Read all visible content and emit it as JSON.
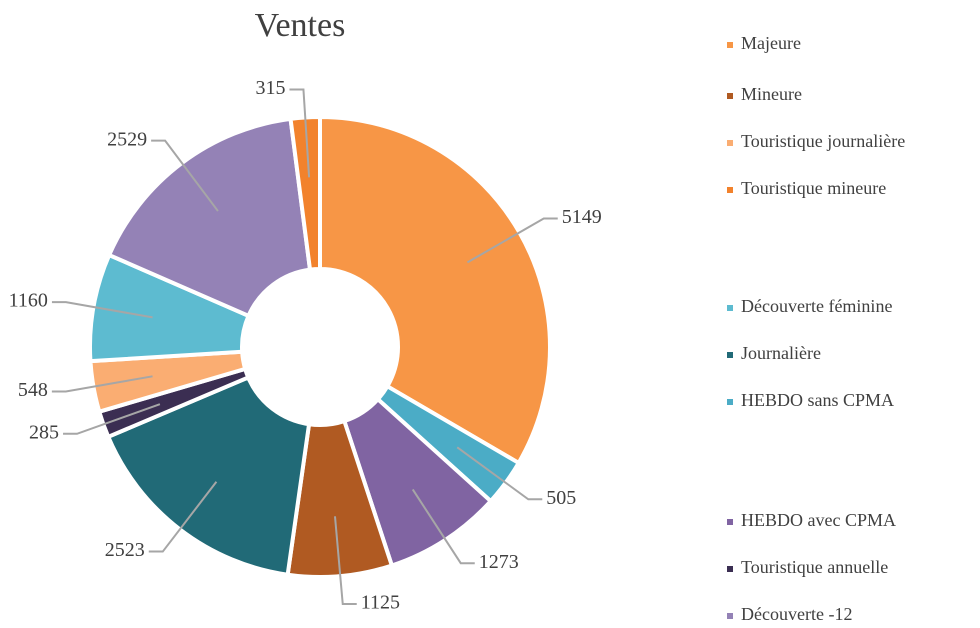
{
  "chart_data": {
    "type": "donut",
    "title": "Ventes",
    "series": [
      {
        "name": "Majeure",
        "color": "#F79646",
        "value": 5149
      },
      {
        "name": "HEBDO sans CPMA",
        "color": "#4BACC6",
        "value": 505
      },
      {
        "name": "HEBDO avec CPMA",
        "color": "#8064A2",
        "value": 1273
      },
      {
        "name": "Mineure",
        "color": "#B05A22",
        "value": 1125
      },
      {
        "name": "Journalière",
        "color": "#216A77",
        "value": 2523
      },
      {
        "name": "Touristique annuelle",
        "color": "#3B2E52",
        "value": 285
      },
      {
        "name": "Touristique journalière",
        "color": "#FAAD72",
        "value": 548
      },
      {
        "name": "Découverte féminine",
        "color": "#5DBBD0",
        "value": 1160
      },
      {
        "name": "Découverte -12",
        "color": "#9482B6",
        "value": 2529
      },
      {
        "name": "Touristique mineure",
        "color": "#F2822C",
        "value": 315
      }
    ]
  }
}
